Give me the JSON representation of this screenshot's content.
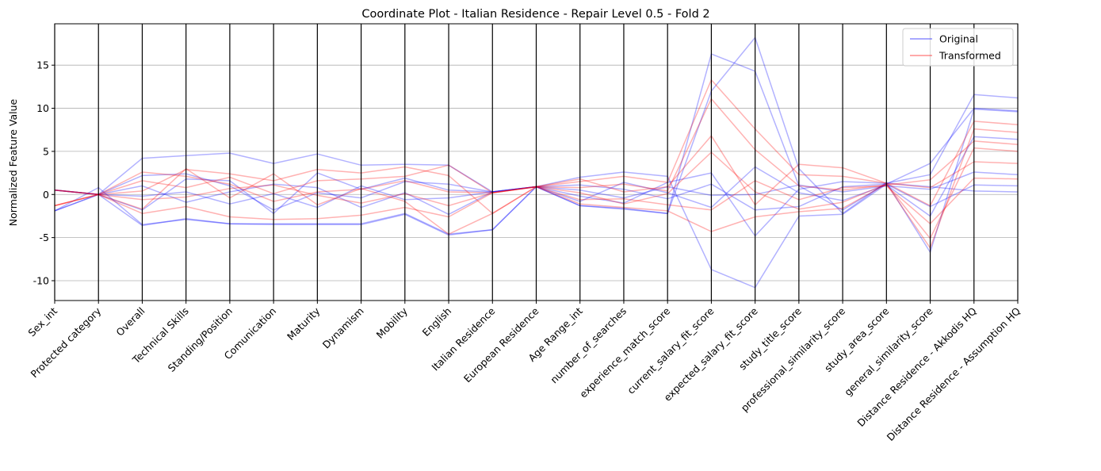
{
  "chart_data": {
    "type": "line",
    "subtype": "parallel-coordinates",
    "title": "Coordinate Plot - Italian Residence - Repair Level 0.5 - Fold 2",
    "xlabel": "",
    "ylabel": "Normalized Feature Value",
    "ylim": [
      -12.3,
      19.8
    ],
    "yticks": [
      -10,
      -5,
      0,
      5,
      10,
      15
    ],
    "grid": "horizontal",
    "legend_position": "top-right",
    "categories": [
      "Sex_int",
      "Protected category",
      "Overall",
      "Technical Skills",
      "Standing/Position",
      "Comunication",
      "Maturity",
      "Dynamism",
      "Mobility",
      "English",
      "Italian Residence",
      "European Residence",
      "Age Range_int",
      "number_of_searches",
      "experience_match_score",
      "current_salary_fit_score",
      "expected_salary_fit_score",
      "study_title_score",
      "professional_similarity_score",
      "study_area_score",
      "general_similarity_score",
      "Distance Residence - Akkodis HQ",
      "Distance Residence - Assumption HQ"
    ],
    "series_style": [
      {
        "name": "Original",
        "color": "#0000ff",
        "opacity": 0.3
      },
      {
        "name": "Transformed",
        "color": "#ff0000",
        "opacity": 0.3
      }
    ],
    "series": [
      {
        "name": "Original",
        "group": "Original",
        "values": [
          -1.9,
          0.8,
          -3.5,
          -2.9,
          -3.4,
          -3.4,
          -3.4,
          -3.4,
          -2.2,
          -4.6,
          -4.1,
          0.9,
          -1.3,
          -1.6,
          -2.2,
          16.3,
          14.3,
          1.0,
          -1.8,
          1.3,
          2.3,
          11.6,
          11.2
        ]
      },
      {
        "name": "Original",
        "group": "Original",
        "values": [
          0.5,
          0.0,
          4.2,
          4.5,
          4.8,
          3.6,
          4.7,
          3.4,
          3.5,
          3.4,
          0.3,
          0.9,
          2.0,
          2.6,
          2.1,
          -8.7,
          -10.8,
          -2.5,
          -2.3,
          1.2,
          3.6,
          10.0,
          9.7
        ]
      },
      {
        "name": "Original",
        "group": "Original",
        "values": [
          -1.9,
          0.0,
          -3.6,
          -2.8,
          -3.4,
          -3.5,
          -3.5,
          -3.5,
          -2.3,
          -4.7,
          -4.1,
          0.9,
          -1.3,
          -1.7,
          -2.2,
          12.0,
          18.2,
          3.0,
          -2.2,
          1.4,
          -6.7,
          9.9,
          9.6
        ]
      },
      {
        "name": "Original",
        "group": "Original",
        "values": [
          0.5,
          0.0,
          2.2,
          2.4,
          1.0,
          -1.8,
          0.2,
          -0.4,
          1.5,
          1.2,
          0.3,
          0.9,
          0.5,
          -0.4,
          0.9,
          -0.1,
          0.0,
          1.1,
          0.3,
          1.0,
          0.6,
          2.6,
          2.3
        ]
      },
      {
        "name": "Original",
        "group": "Original",
        "values": [
          0.5,
          0.0,
          -0.2,
          0.3,
          -1.1,
          0.1,
          -1.5,
          1.0,
          -0.6,
          -0.4,
          0.3,
          0.9,
          1.1,
          0.6,
          -0.5,
          1.2,
          -1.8,
          -1.4,
          0.9,
          1.2,
          -1.4,
          1.1,
          1.0
        ]
      },
      {
        "name": "Original",
        "group": "Original",
        "values": [
          -1.9,
          0.0,
          1.0,
          -0.9,
          0.3,
          1.2,
          0.8,
          -1.5,
          0.2,
          -2.3,
          0.3,
          0.9,
          -0.8,
          1.4,
          0.2,
          -1.5,
          3.2,
          0.2,
          -0.7,
          1.1,
          -2.5,
          6.7,
          6.4
        ]
      },
      {
        "name": "Original",
        "group": "Original",
        "values": [
          0.5,
          0.0,
          -1.8,
          1.8,
          1.6,
          -2.2,
          2.5,
          0.6,
          1.9,
          0.5,
          0.3,
          0.9,
          -0.2,
          -1.0,
          1.4,
          2.5,
          -4.8,
          0.6,
          1.5,
          1.3,
          0.9,
          0.4,
          0.3
        ]
      },
      {
        "name": "Transformed",
        "group": "Transformed",
        "values": [
          -1.3,
          0.0,
          1.6,
          0.8,
          2.0,
          0.1,
          1.6,
          1.8,
          2.1,
          3.4,
          0.2,
          0.9,
          1.5,
          2.1,
          1.4,
          13.3,
          7.6,
          2.3,
          2.1,
          1.3,
          -1.3,
          8.5,
          8.1
        ]
      },
      {
        "name": "Transformed",
        "group": "Transformed",
        "values": [
          0.5,
          0.0,
          -1.7,
          3.0,
          -0.4,
          2.4,
          -1.2,
          0.7,
          -0.8,
          -4.6,
          -2.2,
          0.9,
          -1.1,
          -1.5,
          -1.9,
          -4.3,
          -2.6,
          -2.0,
          -1.6,
          1.2,
          -6.2,
          7.6,
          7.2
        ]
      },
      {
        "name": "Transformed",
        "group": "Transformed",
        "values": [
          -1.3,
          0.0,
          2.6,
          2.1,
          1.2,
          -0.8,
          0.3,
          0.6,
          1.6,
          0.3,
          0.2,
          0.9,
          0.8,
          1.2,
          0.4,
          11.1,
          5.2,
          1.0,
          0.5,
          1.1,
          1.7,
          6.2,
          5.8
        ]
      },
      {
        "name": "Transformed",
        "group": "Transformed",
        "values": [
          0.5,
          0.0,
          -2.2,
          -1.4,
          -2.6,
          -2.9,
          -2.8,
          -2.4,
          -1.5,
          -2.6,
          0.2,
          0.9,
          -0.6,
          -0.5,
          -1.2,
          -1.8,
          1.6,
          -0.6,
          0.8,
          1.0,
          -3.4,
          1.9,
          1.8
        ]
      },
      {
        "name": "Transformed",
        "group": "Transformed",
        "values": [
          -1.3,
          0.0,
          0.4,
          2.9,
          2.4,
          1.6,
          2.9,
          2.5,
          3.2,
          2.2,
          -2.2,
          0.9,
          1.8,
          0.3,
          0.9,
          6.8,
          -1.2,
          3.5,
          3.1,
          1.3,
          0.8,
          3.8,
          3.6
        ]
      },
      {
        "name": "Transformed",
        "group": "Transformed",
        "values": [
          0.5,
          0.0,
          -0.6,
          -0.3,
          0.7,
          1.1,
          -0.1,
          -1.0,
          0.1,
          -1.3,
          0.2,
          0.9,
          0.2,
          -1.1,
          0.1,
          4.9,
          0.3,
          -1.7,
          -0.9,
          1.2,
          -5.1,
          5.4,
          5.0
        ]
      }
    ]
  },
  "legend": {
    "items": [
      {
        "label": "Original",
        "color": "#0000ff"
      },
      {
        "label": "Transformed",
        "color": "#ff0000"
      }
    ]
  }
}
